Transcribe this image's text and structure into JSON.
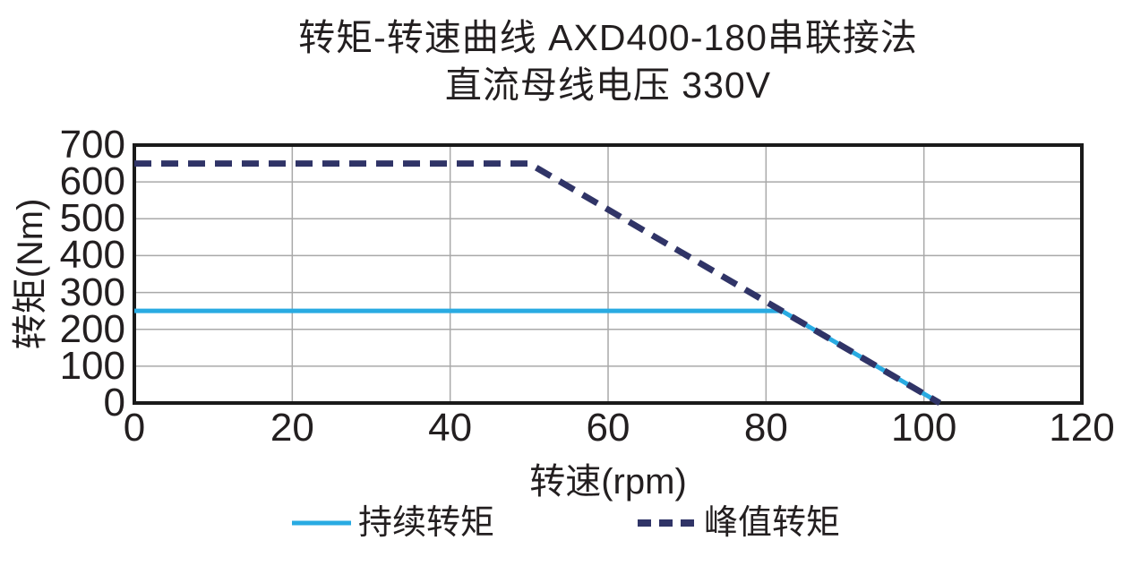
{
  "page": {
    "background": "#ffffff",
    "text_color": "#231f20"
  },
  "chart_data": {
    "type": "line",
    "title": "转矩-转速曲线 AXD400-180串联接法",
    "subtitle": "直流母线电压 330V",
    "xlabel": "转速(rpm)",
    "ylabel": "转矩(Nm)",
    "xlim": [
      0,
      120
    ],
    "ylim": [
      0,
      700
    ],
    "xticks": [
      0,
      20,
      40,
      60,
      80,
      100,
      120
    ],
    "yticks": [
      0,
      100,
      200,
      300,
      400,
      500,
      600,
      700
    ],
    "grid": true,
    "grid_color": "#a9a9a9",
    "axis_color": "#1a1a1a",
    "legend_position": "bottom",
    "series": [
      {
        "key": "continuous-torque",
        "name": "持续转矩",
        "style": "solid",
        "color": "#29abe2",
        "line_width": 5,
        "points": [
          [
            0,
            250
          ],
          [
            82,
            250
          ],
          [
            102,
            0
          ]
        ]
      },
      {
        "key": "peak-torque",
        "name": "峰值转矩",
        "style": "dashed",
        "color": "#303467",
        "line_width": 7,
        "points": [
          [
            0,
            650
          ],
          [
            50,
            650
          ],
          [
            102,
            0
          ]
        ]
      }
    ]
  }
}
